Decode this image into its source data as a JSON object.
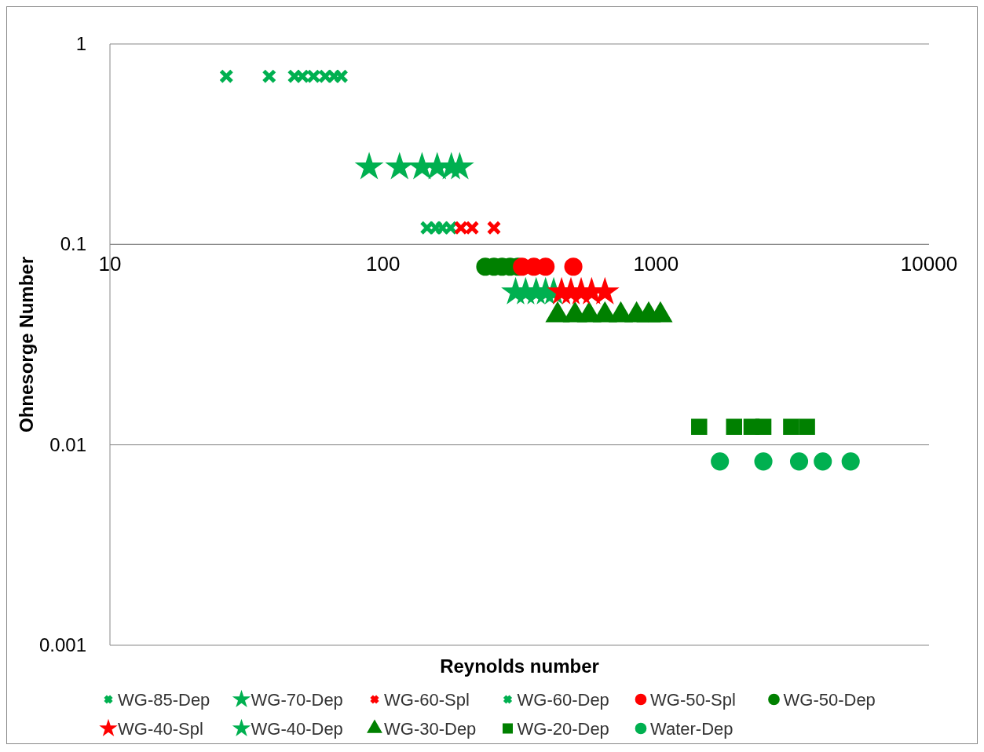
{
  "chart_data": {
    "type": "scatter",
    "xlabel": "Reynolds number",
    "ylabel": "Ohnesorge Number",
    "log": "xy",
    "xlim": [
      10,
      10000
    ],
    "xticks": [
      10,
      100,
      1000,
      10000
    ],
    "ylim": [
      0.001,
      1
    ],
    "yticks": [
      0.001,
      0.01,
      0.1,
      1
    ],
    "grid": "y",
    "legend": "bottom",
    "series": [
      {
        "name": "WG-85-Dep",
        "color": "#00b050",
        "marker": "cross",
        "x": [
          26.7,
          38.3,
          47.4,
          50.7,
          55.7,
          61.5,
          66.2,
          70.3
        ],
        "values": [
          0.69,
          0.69,
          0.69,
          0.69,
          0.69,
          0.69,
          0.69,
          0.69
        ]
      },
      {
        "name": "WG-70-Dep",
        "color": "#00b050",
        "marker": "star",
        "x": [
          89,
          115,
          139,
          158,
          178,
          191
        ],
        "values": [
          0.243,
          0.243,
          0.243,
          0.243,
          0.243,
          0.243
        ]
      },
      {
        "name": "WG-60-Spl",
        "color": "#ff0000",
        "marker": "cross",
        "x": [
          193,
          212,
          255
        ],
        "values": [
          0.121,
          0.121,
          0.121
        ]
      },
      {
        "name": "WG-60-Dep",
        "color": "#00b050",
        "marker": "cross",
        "x": [
          145,
          156,
          165,
          177
        ],
        "values": [
          0.121,
          0.121,
          0.121,
          0.121
        ]
      },
      {
        "name": "WG-50-Spl",
        "color": "#ff0000",
        "marker": "circle",
        "x": [
          323,
          357,
          394,
          498
        ],
        "values": [
          0.0774,
          0.0774,
          0.0774,
          0.0774
        ]
      },
      {
        "name": "WG-50-Dep",
        "color": "#008000",
        "marker": "circle",
        "x": [
          237,
          255,
          273,
          292,
          312
        ],
        "values": [
          0.0774,
          0.0774,
          0.0774,
          0.0774,
          0.0774
        ]
      },
      {
        "name": "WG-40-Spl",
        "color": "#ff0000",
        "marker": "star",
        "x": [
          451,
          488,
          532,
          581,
          650
        ],
        "values": [
          0.0578,
          0.0578,
          0.0578,
          0.0578,
          0.0578
        ]
      },
      {
        "name": "WG-40-Dep",
        "color": "#00b050",
        "marker": "star",
        "x": [
          306,
          333,
          364,
          394,
          422
        ],
        "values": [
          0.0578,
          0.0578,
          0.0578,
          0.0578,
          0.0578
        ]
      },
      {
        "name": "WG-30-Dep",
        "color": "#008000",
        "marker": "triangle",
        "x": [
          436,
          505,
          569,
          650,
          743,
          849,
          940,
          1038
        ],
        "values": [
          0.0443,
          0.0443,
          0.0443,
          0.0443,
          0.0443,
          0.0443,
          0.0443,
          0.0443
        ]
      },
      {
        "name": "WG-20-Dep",
        "color": "#008000",
        "marker": "square",
        "x": [
          1439,
          1932,
          2238,
          2473,
          3126,
          3573
        ],
        "values": [
          0.0123,
          0.0123,
          0.0123,
          0.0123,
          0.0123,
          0.0123
        ]
      },
      {
        "name": "Water-Dep",
        "color": "#00b050",
        "marker": "circle",
        "x": [
          1714,
          2473,
          3342,
          4083,
          5164
        ],
        "values": [
          0.00826,
          0.00826,
          0.00826,
          0.00826,
          0.00826
        ]
      }
    ]
  }
}
